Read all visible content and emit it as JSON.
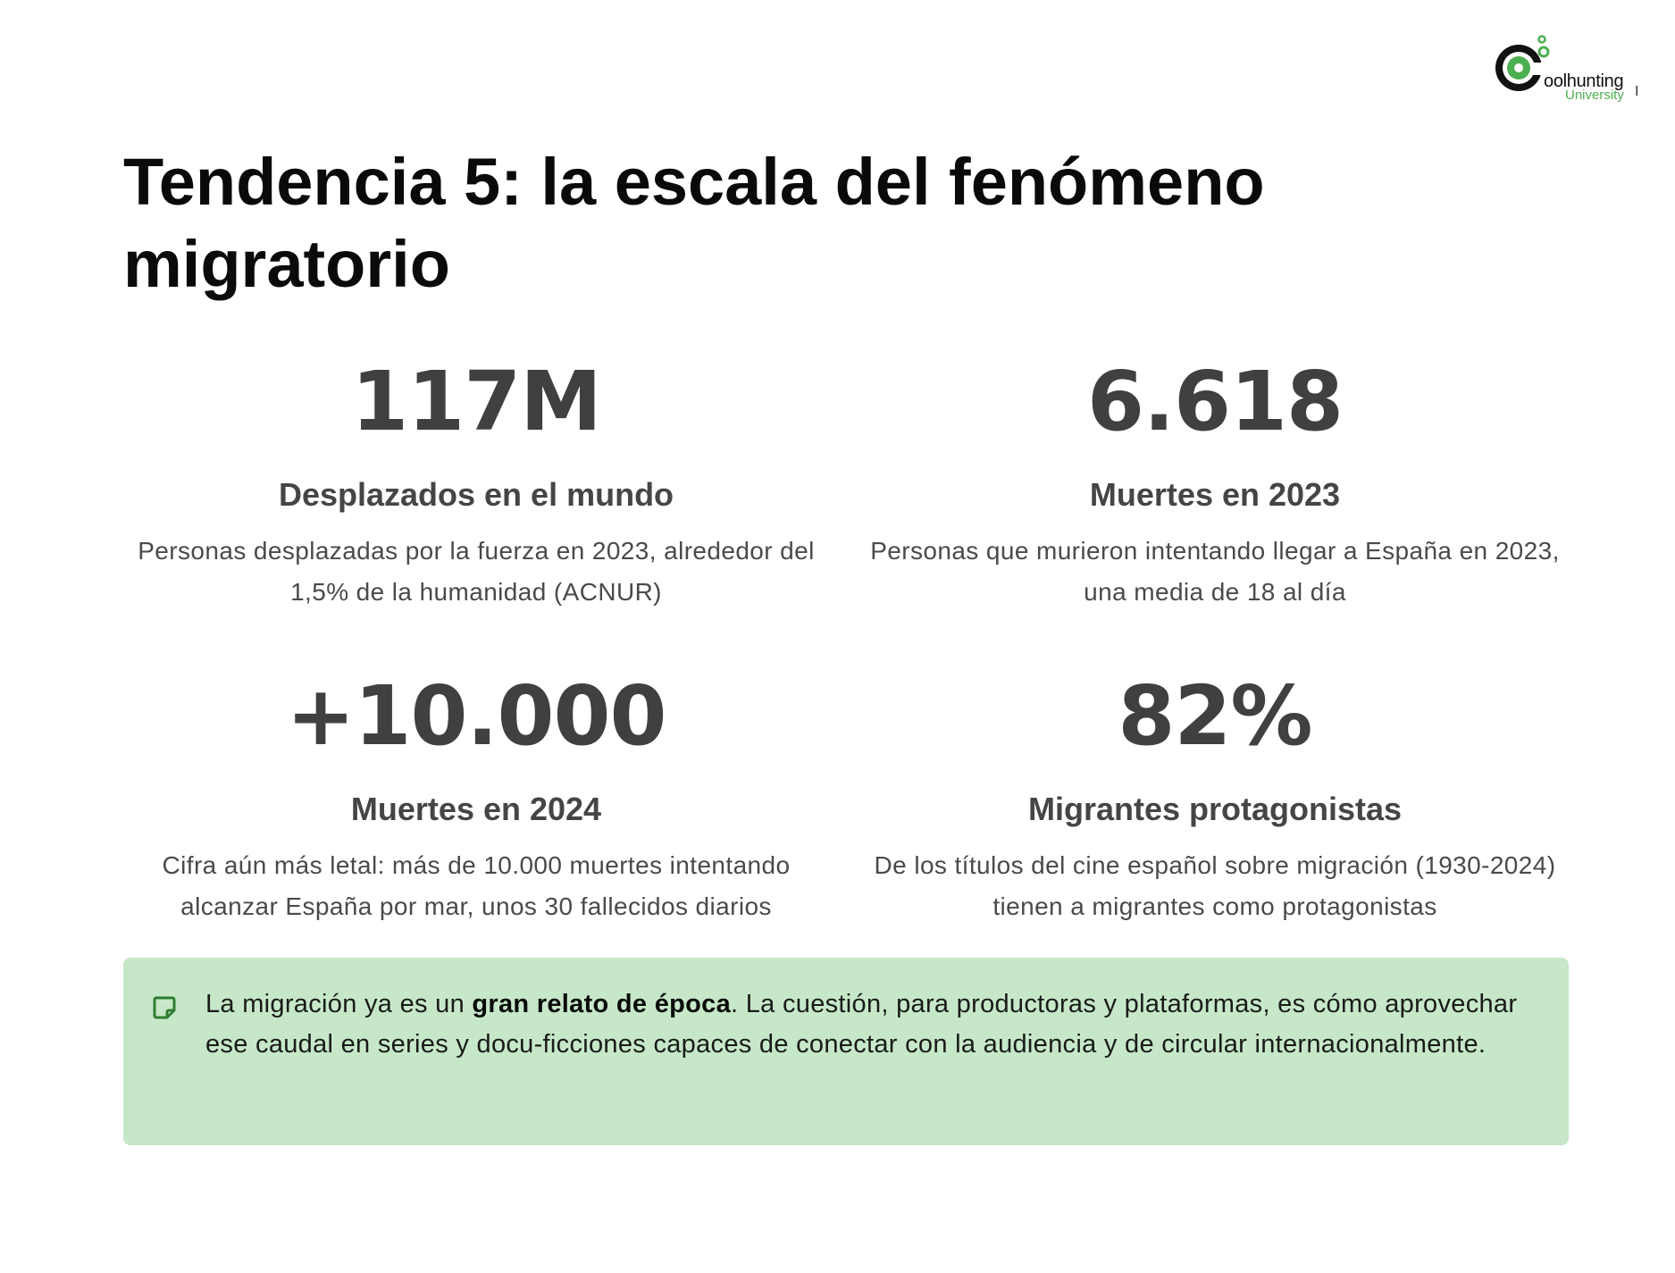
{
  "logo": {
    "word": "oolhunting",
    "sub": "University",
    "tail": "I",
    "accent_color": "#4caf50"
  },
  "title": "Tendencia 5: la escala del fenómeno migratorio",
  "stats": [
    {
      "value": "117M",
      "label": "Desplazados en el mundo",
      "description": "Personas desplazadas por la fuerza en 2023, alrededor del 1,5% de la humanidad (ACNUR)"
    },
    {
      "value": "6.618",
      "label": "Muertes en 2023",
      "description": "Personas que murieron intentando llegar a España en 2023, una media de 18 al día"
    },
    {
      "value": "+10.000",
      "label": "Muertes en 2024",
      "description": "Cifra aún más letal: más de 10.000 muertes intentando alcanzar España por mar, unos 30 fallecidos diarios"
    },
    {
      "value": "82%",
      "label": "Migrantes protagonistas",
      "description": "De los títulos del cine español sobre migración (1930-2024) tienen a migrantes como protagonistas"
    }
  ],
  "callout": {
    "icon": "note-icon",
    "background": "#c6e8c8",
    "text_before": "La migración ya es un ",
    "text_bold": "gran relato de época",
    "text_after": ". La cuestión, para productoras y plataformas, es cómo aprovechar ese caudal en series y docu-ficciones capaces de conectar con la audiencia y de circular internacionalmente."
  }
}
